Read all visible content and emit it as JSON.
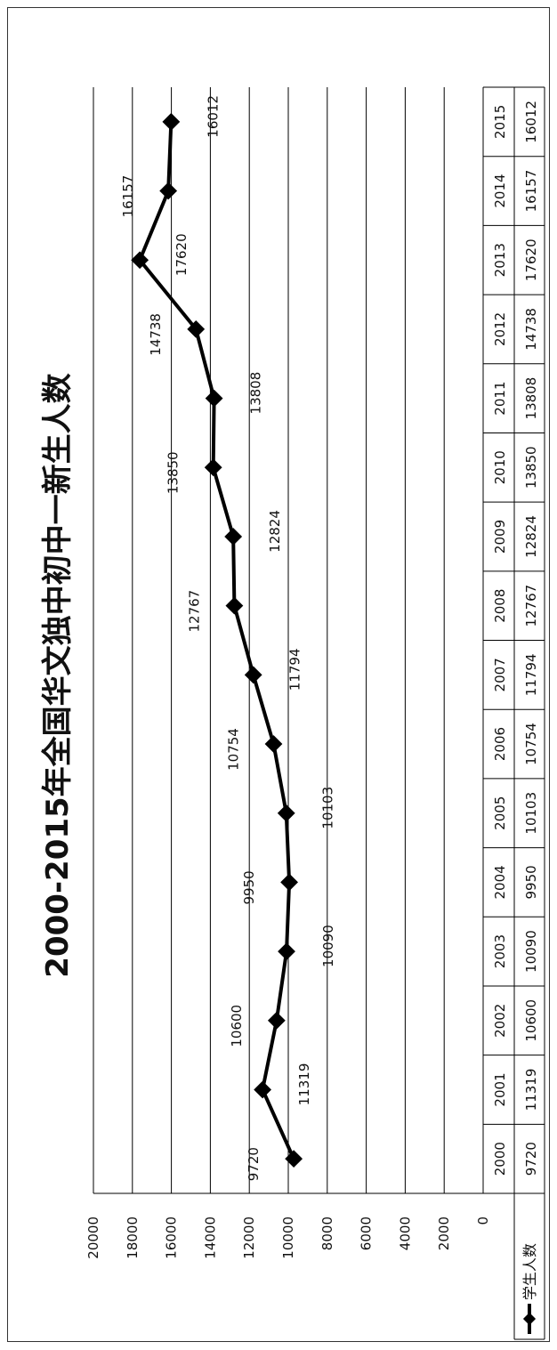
{
  "chart_data": {
    "type": "line",
    "title": "2000-2015年全国华文独中初中一新生人数",
    "xlabel": "",
    "ylabel": "",
    "categories": [
      "2000",
      "2001",
      "2002",
      "2003",
      "2004",
      "2005",
      "2006",
      "2007",
      "2008",
      "2009",
      "2010",
      "2011",
      "2012",
      "2013",
      "2014",
      "2015"
    ],
    "series": [
      {
        "name": "学生人数",
        "values": [
          9720,
          11319,
          10600,
          10090,
          9950,
          10103,
          10754,
          11794,
          12767,
          12824,
          13850,
          13808,
          14738,
          17620,
          16157,
          16012
        ]
      }
    ],
    "ylim": [
      0,
      20000
    ],
    "yticks": [
      0,
      2000,
      4000,
      6000,
      8000,
      10000,
      12000,
      14000,
      16000,
      18000,
      20000
    ],
    "grid": true,
    "legend": "left of data table",
    "data_table": true,
    "orientation": "rotated 90° counter-clockwise",
    "colors": {
      "line": "#000000",
      "grid": "#000000"
    }
  }
}
